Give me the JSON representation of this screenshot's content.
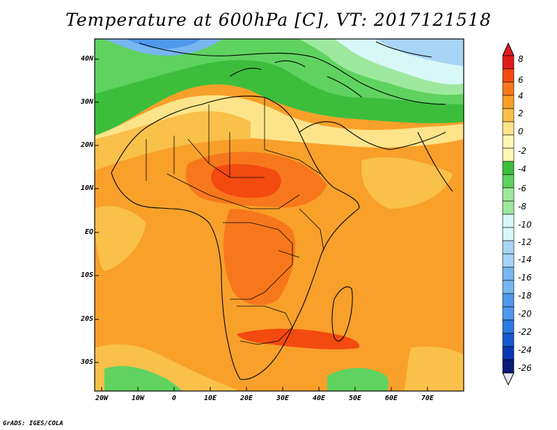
{
  "title": "Temperature at 600hPa [C], VT: 2017121518",
  "credit": "GrADS: IGES/COLA",
  "lat_labels": [
    "40N",
    "30N",
    "20N",
    "10N",
    "EQ",
    "10S",
    "20S",
    "30S"
  ],
  "lon_labels": [
    "20W",
    "10W",
    "0",
    "10E",
    "20E",
    "30E",
    "40E",
    "50E",
    "60E",
    "70E"
  ],
  "colorbar": {
    "labels": [
      "8",
      "6",
      "4",
      "2",
      "0",
      "-2",
      "-4",
      "-6",
      "-8",
      "-10",
      "-12",
      "-14",
      "-16",
      "-18",
      "-20",
      "-22",
      "-24",
      "-26"
    ],
    "colors": [
      "#e31a1c",
      "#f34a10",
      "#f7781c",
      "#f8a02a",
      "#f9c04a",
      "#fde48a",
      "#fef6b4",
      "#3cbe3c",
      "#5fd25f",
      "#9ee89e",
      "#d8f7f7",
      "#a8d4f5",
      "#78b6ef",
      "#4f98ea",
      "#2b79e0",
      "#1559d0",
      "#0a37b3",
      "#091a78",
      "#e6e6fa"
    ]
  },
  "colors": {
    "map_base": "#f8a02a",
    "land_outline": "#000000",
    "frame": "#000000"
  }
}
